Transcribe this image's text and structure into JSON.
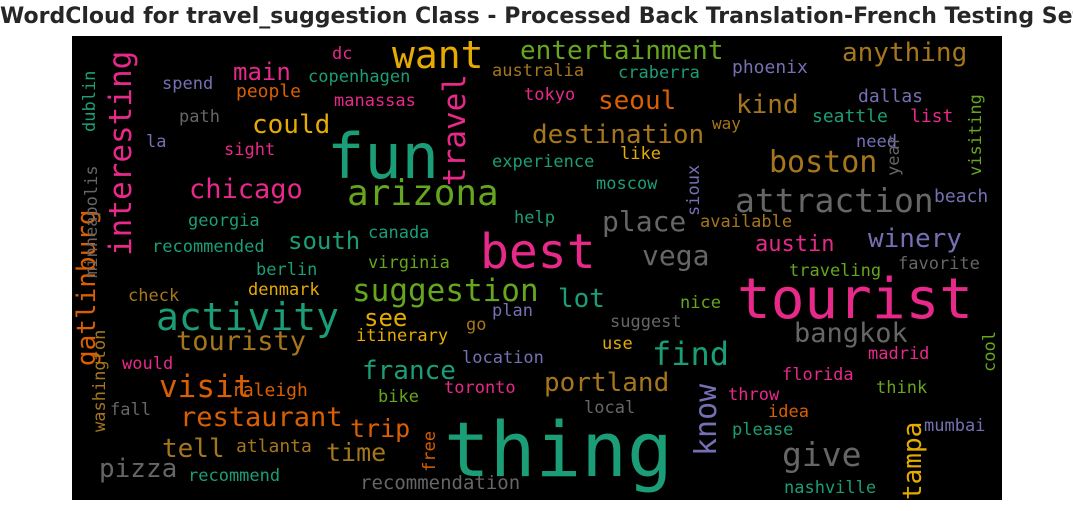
{
  "title": "WordCloud for travel_suggestion Class - Processed Back Translation-French Testing Set",
  "palette": {
    "green": "#1b9e77",
    "orange": "#d95f02",
    "purple": "#7570b3",
    "pink": "#e7298a",
    "lime": "#66a61e",
    "gold": "#e6ab02",
    "brown": "#a6761d",
    "gray": "#666666"
  },
  "words": [
    {
      "text": "thing",
      "color": "green"
    },
    {
      "text": "tourist",
      "color": "pink"
    },
    {
      "text": "fun",
      "color": "green"
    },
    {
      "text": "best",
      "color": "pink"
    },
    {
      "text": "want",
      "color": "gold"
    },
    {
      "text": "activity",
      "color": "green"
    },
    {
      "text": "arizona",
      "color": "lime"
    },
    {
      "text": "attraction",
      "color": "gray"
    },
    {
      "text": "suggestion",
      "color": "lime"
    },
    {
      "text": "interesting",
      "color": "pink"
    },
    {
      "text": "travel",
      "color": "pink"
    },
    {
      "text": "boston",
      "color": "brown"
    },
    {
      "text": "find",
      "color": "green"
    },
    {
      "text": "give",
      "color": "gray"
    },
    {
      "text": "know",
      "color": "purple"
    },
    {
      "text": "visit",
      "color": "orange"
    },
    {
      "text": "restaurant",
      "color": "orange"
    },
    {
      "text": "destination",
      "color": "brown"
    },
    {
      "text": "entertainment",
      "color": "lime"
    },
    {
      "text": "chicago",
      "color": "pink"
    },
    {
      "text": "place",
      "color": "gray"
    },
    {
      "text": "touristy",
      "color": "brown"
    },
    {
      "text": "portland",
      "color": "brown"
    },
    {
      "text": "bangkok",
      "color": "gray"
    },
    {
      "text": "vega",
      "color": "gray"
    },
    {
      "text": "gatlinburg",
      "color": "orange"
    },
    {
      "text": "winery",
      "color": "purple"
    },
    {
      "text": "anything",
      "color": "brown"
    },
    {
      "text": "seoul",
      "color": "orange"
    },
    {
      "text": "kind",
      "color": "brown"
    },
    {
      "text": "france",
      "color": "green"
    },
    {
      "text": "pizza",
      "color": "gray"
    },
    {
      "text": "tampa",
      "color": "gold"
    },
    {
      "text": "could",
      "color": "gold"
    },
    {
      "text": "tell",
      "color": "brown"
    },
    {
      "text": "trip",
      "color": "orange"
    },
    {
      "text": "south",
      "color": "green"
    },
    {
      "text": "austin",
      "color": "pink"
    },
    {
      "text": "main",
      "color": "pink"
    },
    {
      "text": "time",
      "color": "brown"
    },
    {
      "text": "lot",
      "color": "green"
    },
    {
      "text": "see",
      "color": "gold"
    },
    {
      "text": "recommendation",
      "color": "gray"
    },
    {
      "text": "copenhagen",
      "color": "green"
    },
    {
      "text": "australia",
      "color": "brown"
    },
    {
      "text": "craberra",
      "color": "green"
    },
    {
      "text": "phoenix",
      "color": "purple"
    },
    {
      "text": "spend",
      "color": "purple"
    },
    {
      "text": "dc",
      "color": "pink"
    },
    {
      "text": "people",
      "color": "orange"
    },
    {
      "text": "manassas",
      "color": "pink"
    },
    {
      "text": "tokyo",
      "color": "pink"
    },
    {
      "text": "dallas",
      "color": "purple"
    },
    {
      "text": "path",
      "color": "gray"
    },
    {
      "text": "seattle",
      "color": "green"
    },
    {
      "text": "list",
      "color": "pink"
    },
    {
      "text": "la",
      "color": "purple"
    },
    {
      "text": "sight",
      "color": "pink"
    },
    {
      "text": "way",
      "color": "brown"
    },
    {
      "text": "need",
      "color": "purple"
    },
    {
      "text": "experience",
      "color": "green"
    },
    {
      "text": "like",
      "color": "gold"
    },
    {
      "text": "moscow",
      "color": "green"
    },
    {
      "text": "year",
      "color": "gray"
    },
    {
      "text": "beach",
      "color": "purple"
    },
    {
      "text": "georgia",
      "color": "green"
    },
    {
      "text": "help",
      "color": "green"
    },
    {
      "text": "available",
      "color": "brown"
    },
    {
      "text": "recommended",
      "color": "green"
    },
    {
      "text": "canada",
      "color": "green"
    },
    {
      "text": "berlin",
      "color": "green"
    },
    {
      "text": "virginia",
      "color": "lime"
    },
    {
      "text": "traveling",
      "color": "lime"
    },
    {
      "text": "favorite",
      "color": "gray"
    },
    {
      "text": "check",
      "color": "brown"
    },
    {
      "text": "denmark",
      "color": "gold"
    },
    {
      "text": "nice",
      "color": "lime"
    },
    {
      "text": "plan",
      "color": "purple"
    },
    {
      "text": "suggest",
      "color": "gray"
    },
    {
      "text": "go",
      "color": "brown"
    },
    {
      "text": "itinerary",
      "color": "gold"
    },
    {
      "text": "use",
      "color": "gold"
    },
    {
      "text": "location",
      "color": "purple"
    },
    {
      "text": "madrid",
      "color": "pink"
    },
    {
      "text": "would",
      "color": "pink"
    },
    {
      "text": "raleigh",
      "color": "orange"
    },
    {
      "text": "toronto",
      "color": "pink"
    },
    {
      "text": "florida",
      "color": "pink"
    },
    {
      "text": "think",
      "color": "lime"
    },
    {
      "text": "fall",
      "color": "gray"
    },
    {
      "text": "bike",
      "color": "lime"
    },
    {
      "text": "throw",
      "color": "pink"
    },
    {
      "text": "local",
      "color": "gray"
    },
    {
      "text": "idea",
      "color": "orange"
    },
    {
      "text": "mumbai",
      "color": "purple"
    },
    {
      "text": "atlanta",
      "color": "brown"
    },
    {
      "text": "please",
      "color": "green"
    },
    {
      "text": "recommend",
      "color": "green"
    },
    {
      "text": "nashville",
      "color": "green"
    },
    {
      "text": "free",
      "color": "orange"
    },
    {
      "text": "dublin",
      "color": "green"
    },
    {
      "text": "minneapolis",
      "color": "gray"
    },
    {
      "text": "washington",
      "color": "brown"
    },
    {
      "text": "sioux",
      "color": "purple"
    },
    {
      "text": "visiting",
      "color": "lime"
    },
    {
      "text": "cool",
      "color": "lime"
    }
  ]
}
